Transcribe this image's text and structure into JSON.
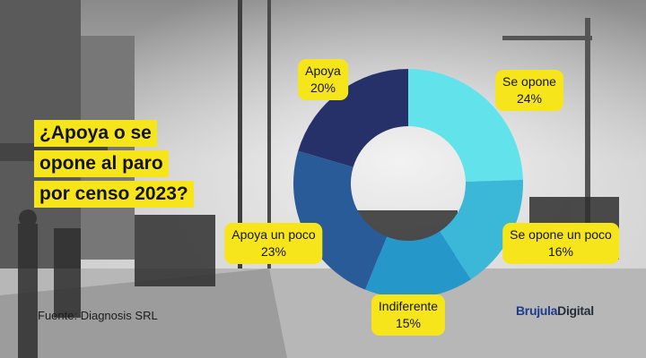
{
  "title_lines": [
    "¿Apoya o se",
    "opone al paro",
    "por censo 2023?"
  ],
  "source": "Fuente: Diagnosis SRL",
  "logo": {
    "part1": "Brujula",
    "part2": "Digital"
  },
  "chart_data": {
    "type": "pie",
    "donut": true,
    "slices": [
      {
        "label": "Se opone",
        "value": 24,
        "display": "24%",
        "color": "#62e2ea"
      },
      {
        "label": "Se opone un poco",
        "value": 16,
        "display": "16%",
        "color": "#3bb8d8"
      },
      {
        "label": "Indiferente",
        "value": 15,
        "display": "15%",
        "color": "#2697c9"
      },
      {
        "label": "Apoya un poco",
        "value": 23,
        "display": "23%",
        "color": "#2a5b99"
      },
      {
        "label": "Apoya",
        "value": 20,
        "display": "20%",
        "color": "#26316a"
      }
    ],
    "label_background": "#f6e51a",
    "title": "¿Apoya o se opone al paro por censo 2023?"
  }
}
